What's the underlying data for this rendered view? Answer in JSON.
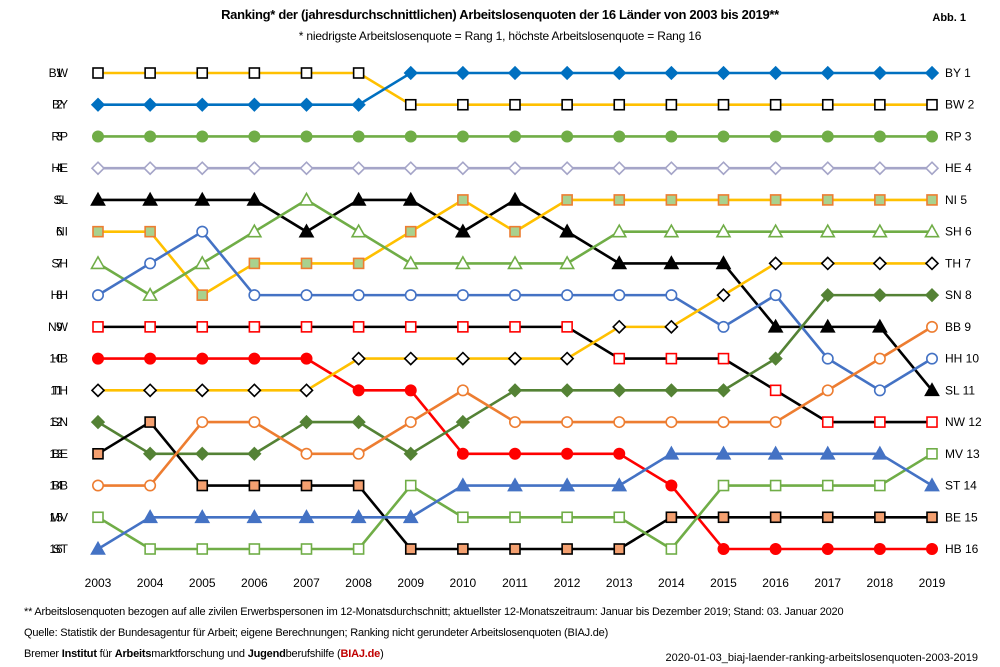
{
  "header": {
    "title": "Ranking* der (jahresdurchschnittlichen) Arbeitslosenquoten der 16 Länder von 2003 bis 2019**",
    "subtitle": "* niedrigste Arbeitslosenquote = Rang 1, höchste Arbeitslosenquote = Rang 16",
    "figure_label": "Abb. 1"
  },
  "footer": {
    "note": "** Arbeitslosenquoten  bezogen auf alle zivilen Erwerbspersonen im 12-Monatsdurchschnitt;  aktuellster  12-Monatszeitraum:  Januar bis Dezember 2019;  Stand:  03. Januar 2020",
    "source": "Quelle:  Statistik der Bundesagentur  für Arbeit;  eigene Berechnungen;  Ranking  nicht gerundeter Arbeitslosenquoten  (BIAJ.de)",
    "org_parts": [
      "Bremer ",
      "Institut",
      " für ",
      "Arbeits",
      "marktforschung  und  ",
      "Jugend",
      "berufshilfe  (",
      "BIAJ.de",
      ")"
    ],
    "filename": "2020-01-03_biaj-laender-ranking-arbeitslosenquoten-2003-2019"
  },
  "chart_data": {
    "type": "line",
    "subtype": "bump",
    "x": [
      2003,
      2004,
      2005,
      2006,
      2007,
      2008,
      2009,
      2010,
      2011,
      2012,
      2013,
      2014,
      2015,
      2016,
      2017,
      2018,
      2019
    ],
    "ylim": [
      1,
      16
    ],
    "y_inverted": true,
    "grid": false,
    "left_labels": [
      "1 BW",
      "2 BY",
      "3 RP",
      "4 HE",
      "5 SL",
      "6 NI",
      "7 SH",
      "8 HH",
      "9 NW",
      "10 HB",
      "11 TH",
      "12 SN",
      "13 BE",
      "14 BB",
      "15 MV",
      "16 ST"
    ],
    "right_labels": [
      "BY 1",
      "BW 2",
      "RP 3",
      "HE 4",
      "NI 5",
      "SH 6",
      "TH 7",
      "SN 8",
      "BB 9",
      "HH 10",
      "SL 11",
      "NW 12",
      "MV 13",
      "ST 14",
      "BE 15",
      "HB 16"
    ],
    "series": [
      {
        "name": "BW",
        "line": "#FFC000",
        "marker": "square",
        "fill": "#FFFFFF",
        "stroke": "#000000",
        "values": [
          1,
          1,
          1,
          1,
          1,
          1,
          2,
          2,
          2,
          2,
          2,
          2,
          2,
          2,
          2,
          2,
          2
        ]
      },
      {
        "name": "BY",
        "line": "#0070C0",
        "marker": "diamond",
        "fill": "#0070C0",
        "stroke": "#0070C0",
        "values": [
          2,
          2,
          2,
          2,
          2,
          2,
          1,
          1,
          1,
          1,
          1,
          1,
          1,
          1,
          1,
          1,
          1
        ]
      },
      {
        "name": "RP",
        "line": "#70AD47",
        "marker": "circle",
        "fill": "#70AD47",
        "stroke": "#70AD47",
        "values": [
          3,
          3,
          3,
          3,
          3,
          3,
          3,
          3,
          3,
          3,
          3,
          3,
          3,
          3,
          3,
          3,
          3
        ]
      },
      {
        "name": "HE",
        "line": "#A5A5C8",
        "marker": "diamond",
        "fill": "#FFFFFF",
        "stroke": "#A5A5C8",
        "values": [
          4,
          4,
          4,
          4,
          4,
          4,
          4,
          4,
          4,
          4,
          4,
          4,
          4,
          4,
          4,
          4,
          4
        ]
      },
      {
        "name": "SL",
        "line": "#000000",
        "marker": "triangle",
        "fill": "#000000",
        "stroke": "#000000",
        "values": [
          5,
          5,
          5,
          5,
          6,
          5,
          5,
          6,
          5,
          6,
          7,
          7,
          7,
          9,
          9,
          9,
          11
        ]
      },
      {
        "name": "NI",
        "line": "#FFC000",
        "marker": "square",
        "fill": "#A9D18E",
        "stroke": "#ED7D31",
        "values": [
          6,
          6,
          8,
          7,
          7,
          7,
          6,
          5,
          6,
          5,
          5,
          5,
          5,
          5,
          5,
          5,
          5
        ]
      },
      {
        "name": "SH",
        "line": "#70AD47",
        "marker": "triangle",
        "fill": "#FFFFFF",
        "stroke": "#70AD47",
        "values": [
          7,
          8,
          7,
          6,
          5,
          6,
          7,
          7,
          7,
          7,
          6,
          6,
          6,
          6,
          6,
          6,
          6
        ]
      },
      {
        "name": "HH",
        "line": "#4472C4",
        "marker": "circle",
        "fill": "#FFFFFF",
        "stroke": "#4472C4",
        "values": [
          8,
          7,
          6,
          8,
          8,
          8,
          8,
          8,
          8,
          8,
          8,
          8,
          9,
          8,
          10,
          11,
          10
        ]
      },
      {
        "name": "NW",
        "line": "#000000",
        "marker": "square",
        "fill": "#FFFFFF",
        "stroke": "#FF0000",
        "values": [
          9,
          9,
          9,
          9,
          9,
          9,
          9,
          9,
          9,
          9,
          10,
          10,
          10,
          11,
          12,
          12,
          12
        ]
      },
      {
        "name": "HB",
        "line": "#FF0000",
        "marker": "circle",
        "fill": "#FF0000",
        "stroke": "#FF0000",
        "values": [
          10,
          10,
          10,
          10,
          10,
          11,
          11,
          13,
          13,
          13,
          13,
          14,
          16,
          16,
          16,
          16,
          16
        ]
      },
      {
        "name": "TH",
        "line": "#FFC000",
        "marker": "diamond",
        "fill": "#FFFFFF",
        "stroke": "#000000",
        "values": [
          11,
          11,
          11,
          11,
          11,
          10,
          10,
          10,
          10,
          10,
          9,
          9,
          8,
          7,
          7,
          7,
          7
        ]
      },
      {
        "name": "SN",
        "line": "#548235",
        "marker": "diamond",
        "fill": "#548235",
        "stroke": "#548235",
        "values": [
          12,
          13,
          13,
          13,
          12,
          12,
          13,
          12,
          11,
          11,
          11,
          11,
          11,
          10,
          8,
          8,
          8
        ]
      },
      {
        "name": "BE",
        "line": "#000000",
        "marker": "square",
        "fill": "#F4A070",
        "stroke": "#000000",
        "values": [
          13,
          12,
          14,
          14,
          14,
          14,
          16,
          16,
          16,
          16,
          16,
          15,
          15,
          15,
          15,
          15,
          15
        ]
      },
      {
        "name": "BB",
        "line": "#ED7D31",
        "marker": "circle",
        "fill": "#FFFFFF",
        "stroke": "#ED7D31",
        "values": [
          14,
          14,
          12,
          12,
          13,
          13,
          12,
          11,
          12,
          12,
          12,
          12,
          12,
          12,
          11,
          10,
          9
        ]
      },
      {
        "name": "MV",
        "line": "#70AD47",
        "marker": "square",
        "fill": "#FFFFFF",
        "stroke": "#70AD47",
        "values": [
          15,
          16,
          16,
          16,
          16,
          16,
          14,
          15,
          15,
          15,
          15,
          16,
          14,
          14,
          14,
          14,
          13
        ]
      },
      {
        "name": "ST",
        "line": "#4472C4",
        "marker": "triangle",
        "fill": "#4472C4",
        "stroke": "#4472C4",
        "values": [
          16,
          15,
          15,
          15,
          15,
          15,
          15,
          14,
          14,
          14,
          14,
          13,
          13,
          13,
          13,
          13,
          14
        ]
      }
    ]
  }
}
